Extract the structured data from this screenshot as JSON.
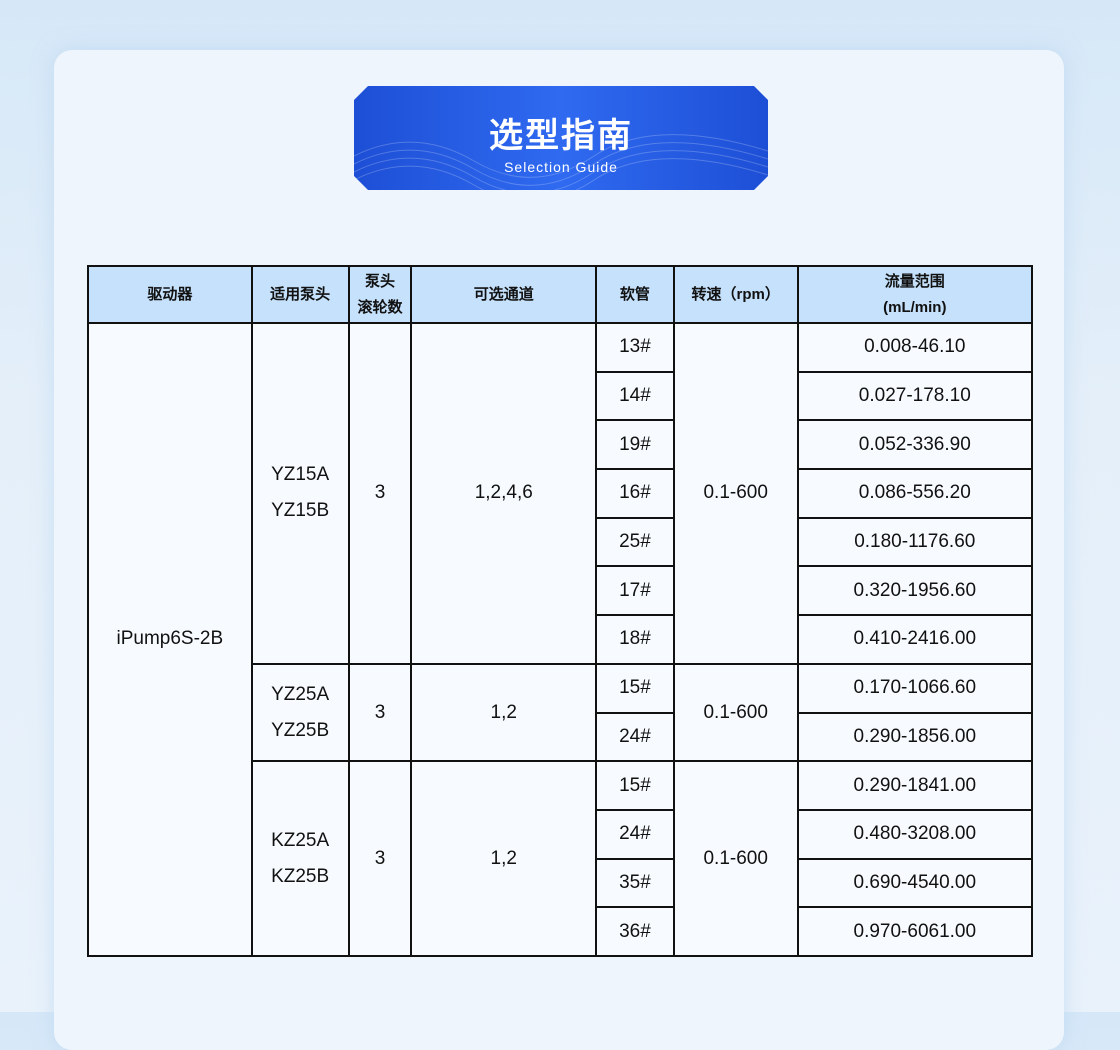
{
  "banner": {
    "title": "选型指南",
    "subtitle": "Selection Guide"
  },
  "table": {
    "headers": [
      "驱动器",
      "适用泵头",
      "泵头滚轮数",
      "可选通道",
      "软管",
      "转速（rpm）",
      "流量范围(mL/min)"
    ],
    "header_labels": {
      "roller_line1": "泵头",
      "roller_line2": "滚轮数",
      "flow_line1": "流量范围",
      "flow_line2": "(mL/min)"
    },
    "driver": "iPump6S-2B",
    "groups": [
      {
        "pump_head": [
          "YZ15A",
          "YZ15B"
        ],
        "rollers": "3",
        "channels": "1,2,4,6",
        "speed": "0.1-600",
        "rows": [
          [
            "13#",
            "0.008-46.10"
          ],
          [
            "14#",
            "0.027-178.10"
          ],
          [
            "19#",
            "0.052-336.90"
          ],
          [
            "16#",
            "0.086-556.20"
          ],
          [
            "25#",
            "0.180-1176.60"
          ],
          [
            "17#",
            "0.320-1956.60"
          ],
          [
            "18#",
            "0.410-2416.00"
          ]
        ]
      },
      {
        "pump_head": [
          "YZ25A",
          "YZ25B"
        ],
        "rollers": "3",
        "channels": "1,2",
        "speed": "0.1-600",
        "rows": [
          [
            "15#",
            "0.170-1066.60"
          ],
          [
            "24#",
            "0.290-1856.00"
          ]
        ]
      },
      {
        "pump_head": [
          "KZ25A",
          "KZ25B"
        ],
        "rollers": "3",
        "channels": "1,2",
        "speed": "0.1-600",
        "rows": [
          [
            "15#",
            "0.290-1841.00"
          ],
          [
            "24#",
            "0.480-3208.00"
          ],
          [
            "35#",
            "0.690-4540.00"
          ],
          [
            "36#",
            "0.970-6061.00"
          ]
        ]
      }
    ]
  }
}
